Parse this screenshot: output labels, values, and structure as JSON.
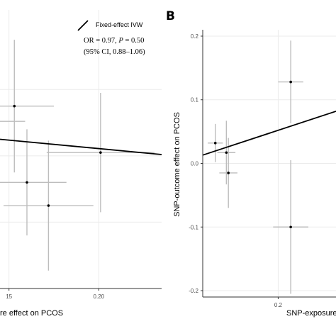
{
  "panels": {
    "A": {
      "legend_label": "Fixed-effect IVW",
      "annotation_line1_pre": "OR = 0.97, ",
      "annotation_line1_p": "P",
      "annotation_line1_post": " = 0.50",
      "annotation_line2": "(95% CI, 0.88–1.06)",
      "xlabel": "re effect on PCOS",
      "xtick_labels": [
        "15",
        "0.20"
      ]
    },
    "B": {
      "panel_label": "B",
      "xlabel": "SNP-exposure",
      "ylabel": "SNP-outcome effect on PCOS",
      "xtick_labels": [
        "0.2"
      ],
      "ytick_labels": [
        "0.2",
        "0.1",
        "0.0",
        "-0.1",
        "-0.2"
      ]
    }
  },
  "chart_data": [
    {
      "type": "scatter",
      "panel": "A",
      "xlim": [
        0.145,
        0.235
      ],
      "ylim": [
        -0.2,
        0.22
      ],
      "xticks": [
        0.15,
        0.2
      ],
      "grid": true,
      "points": [
        {
          "x": 0.143,
          "y": 0.052,
          "xerr": 0.016,
          "yerr": 0.0
        },
        {
          "x": 0.153,
          "y": 0.075,
          "xerr": 0.022,
          "yerr": 0.1
        },
        {
          "x": 0.16,
          "y": -0.04,
          "xerr": 0.022,
          "yerr": 0.08
        },
        {
          "x": 0.172,
          "y": -0.075,
          "xerr": 0.025,
          "yerr": 0.098
        },
        {
          "x": 0.201,
          "y": 0.005,
          "xerr": 0.03,
          "yerr": 0.09
        }
      ],
      "fit_line": {
        "y_at_xmin": 0.025,
        "y_at_xmax": 0.002
      }
    },
    {
      "type": "scatter",
      "panel": "B",
      "xlim": [
        0.05,
        0.315
      ],
      "ylim": [
        -0.21,
        0.21
      ],
      "xticks": [
        0.2
      ],
      "yticks": [
        0.2,
        0.1,
        0.0,
        -0.1,
        -0.2
      ],
      "grid": true,
      "points": [
        {
          "x": 0.075,
          "y": 0.032,
          "xerr": 0.015,
          "yerr": 0.03
        },
        {
          "x": 0.097,
          "y": 0.017,
          "xerr": 0.018,
          "yerr": 0.05
        },
        {
          "x": 0.101,
          "y": -0.015,
          "xerr": 0.018,
          "yerr": 0.055
        },
        {
          "x": 0.225,
          "y": 0.128,
          "xerr": 0.025,
          "yerr": 0.065
        },
        {
          "x": 0.225,
          "y": -0.1,
          "xerr": 0.035,
          "yerr": 0.105
        }
      ],
      "fit_line": {
        "slope": 0.26,
        "intercept": 0.0
      }
    }
  ]
}
